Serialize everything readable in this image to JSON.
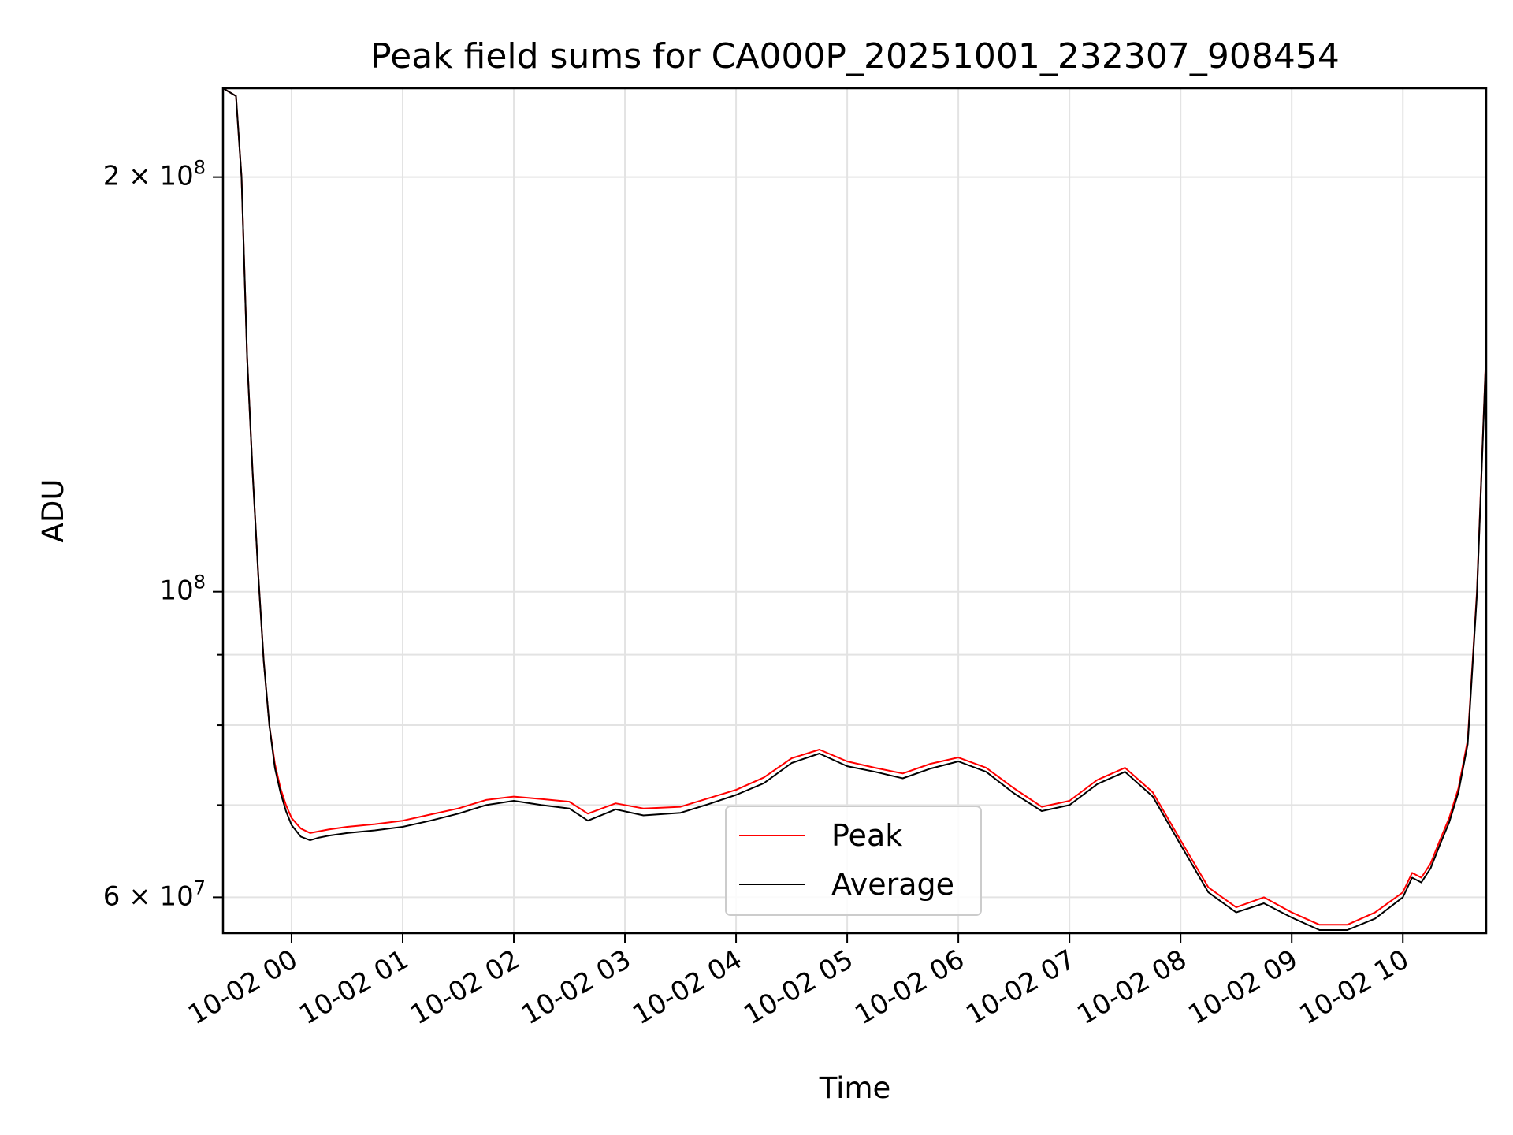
{
  "chart_data": {
    "type": "line",
    "title": "Peak field sums for CA000P_20251001_232307_908454",
    "xlabel": "Time",
    "ylabel": "ADU",
    "y_scale": "log",
    "grid": true,
    "legend_position": "lower-center",
    "xlim": [
      "2025-10-01 23:23",
      "2025-10-02 10:45"
    ],
    "ylim": [
      56500000,
      232000000
    ],
    "x_ticks": [
      "10-02 00",
      "10-02 01",
      "10-02 02",
      "10-02 03",
      "10-02 04",
      "10-02 05",
      "10-02 06",
      "10-02 07",
      "10-02 08",
      "10-02 09",
      "10-02 10"
    ],
    "x_tick_times": [
      "2025-10-02 00:00",
      "2025-10-02 01:00",
      "2025-10-02 02:00",
      "2025-10-02 03:00",
      "2025-10-02 04:00",
      "2025-10-02 05:00",
      "2025-10-02 06:00",
      "2025-10-02 07:00",
      "2025-10-02 08:00",
      "2025-10-02 09:00",
      "2025-10-02 10:00"
    ],
    "y_ticks": [
      {
        "value": 200000000,
        "mantissa": "2",
        "exponent": "8"
      },
      {
        "value": 100000000,
        "mantissa": "",
        "exponent": "8"
      },
      {
        "value": 60000000,
        "mantissa": "6",
        "exponent": "7"
      }
    ],
    "y_minor_ticks": [
      70000000,
      80000000,
      90000000
    ],
    "colors": {
      "peak": "#ff0000",
      "average": "#000000"
    },
    "x": [
      "2025-10-01 23:23",
      "2025-10-01 23:30",
      "2025-10-01 23:33",
      "2025-10-01 23:36",
      "2025-10-01 23:39",
      "2025-10-01 23:42",
      "2025-10-01 23:45",
      "2025-10-01 23:48",
      "2025-10-01 23:51",
      "2025-10-01 23:54",
      "2025-10-01 23:57",
      "2025-10-02 00:00",
      "2025-10-02 00:05",
      "2025-10-02 00:10",
      "2025-10-02 00:15",
      "2025-10-02 00:20",
      "2025-10-02 00:30",
      "2025-10-02 00:45",
      "2025-10-02 01:00",
      "2025-10-02 01:15",
      "2025-10-02 01:30",
      "2025-10-02 01:45",
      "2025-10-02 02:00",
      "2025-10-02 02:15",
      "2025-10-02 02:30",
      "2025-10-02 02:40",
      "2025-10-02 02:55",
      "2025-10-02 03:10",
      "2025-10-02 03:30",
      "2025-10-02 03:45",
      "2025-10-02 04:00",
      "2025-10-02 04:15",
      "2025-10-02 04:30",
      "2025-10-02 04:45",
      "2025-10-02 05:00",
      "2025-10-02 05:15",
      "2025-10-02 05:30",
      "2025-10-02 05:45",
      "2025-10-02 06:00",
      "2025-10-02 06:15",
      "2025-10-02 06:30",
      "2025-10-02 06:45",
      "2025-10-02 07:00",
      "2025-10-02 07:15",
      "2025-10-02 07:30",
      "2025-10-02 07:45",
      "2025-10-02 08:00",
      "2025-10-02 08:15",
      "2025-10-02 08:30",
      "2025-10-02 08:45",
      "2025-10-02 09:00",
      "2025-10-02 09:15",
      "2025-10-02 09:30",
      "2025-10-02 09:45",
      "2025-10-02 10:00",
      "2025-10-02 10:05",
      "2025-10-02 10:10",
      "2025-10-02 10:15",
      "2025-10-02 10:20",
      "2025-10-02 10:25",
      "2025-10-02 10:30",
      "2025-10-02 10:35",
      "2025-10-02 10:40",
      "2025-10-02 10:45"
    ],
    "series": [
      {
        "name": "Peak",
        "values": [
          232000000,
          229000000,
          200000000,
          148000000,
          122000000,
          103000000,
          89000000,
          80000000,
          75000000,
          72000000,
          70000000,
          68500000,
          67300000,
          66800000,
          67000000,
          67200000,
          67500000,
          67800000,
          68200000,
          68900000,
          69600000,
          70600000,
          71000000,
          70700000,
          70400000,
          69000000,
          70200000,
          69600000,
          69800000,
          70800000,
          71800000,
          73300000,
          75700000,
          76800000,
          75300000,
          74500000,
          73800000,
          75000000,
          75800000,
          74500000,
          72000000,
          69800000,
          70500000,
          73000000,
          74500000,
          71500000,
          66000000,
          61000000,
          59000000,
          60000000,
          58500000,
          57300000,
          57300000,
          58500000,
          60500000,
          62500000,
          62000000,
          63500000,
          66000000,
          68500000,
          72000000,
          78000000,
          100000000,
          150000000
        ]
      },
      {
        "name": "Average",
        "values": [
          232000000,
          229000000,
          200000000,
          148000000,
          122000000,
          103000000,
          89000000,
          80000000,
          74500000,
          71500000,
          69300000,
          67700000,
          66400000,
          66000000,
          66300000,
          66500000,
          66800000,
          67100000,
          67500000,
          68200000,
          69000000,
          70000000,
          70500000,
          70000000,
          69600000,
          68200000,
          69500000,
          68800000,
          69100000,
          70100000,
          71200000,
          72600000,
          75100000,
          76300000,
          74700000,
          74000000,
          73200000,
          74400000,
          75300000,
          74000000,
          71400000,
          69300000,
          70000000,
          72500000,
          74000000,
          71000000,
          65500000,
          60500000,
          58500000,
          59400000,
          58000000,
          56800000,
          56800000,
          57900000,
          60000000,
          62000000,
          61500000,
          63000000,
          65500000,
          68000000,
          71500000,
          77500000,
          99500000,
          149500000
        ]
      }
    ],
    "legend": [
      "Peak",
      "Average"
    ]
  }
}
